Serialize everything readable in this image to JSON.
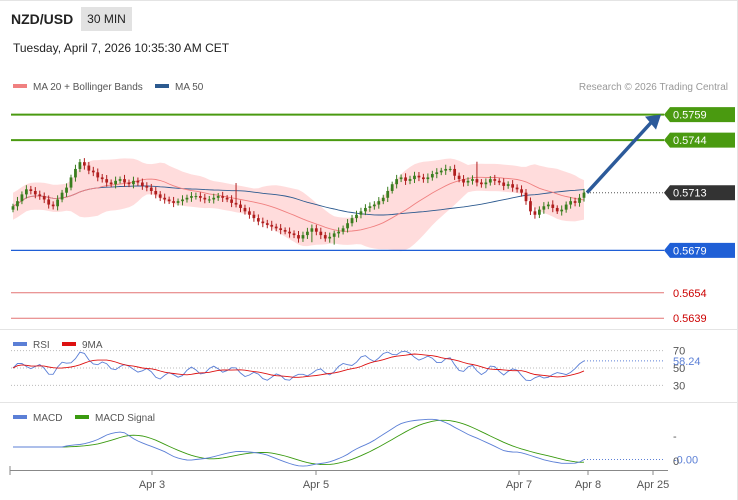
{
  "header": {
    "pair": "NZD/USD",
    "timeframe": "30 MIN",
    "datetime": "Tuesday, April 7, 2026 10:35:30 AM CET",
    "copyright": "Research © 2026 Trading Central"
  },
  "colors": {
    "bollinger_band": "#ffd6d6",
    "ma20": "#f08080",
    "ma50": "#2c5a8f",
    "resistance": "#4a9a10",
    "support": "#1f5fd6",
    "support_red": "#cc0000",
    "candle_up": "#3a7d1e",
    "candle_down": "#b01e1e",
    "arrow": "#2c5a9a",
    "rsi": "#5b7fd6",
    "rsi_ma": "#dd1111",
    "macd": "#5b7fd6",
    "macd_signal": "#3a9a10"
  },
  "chart_data": [
    {
      "type": "candlestick",
      "legend": [
        {
          "name": "MA 20 + Bollinger Bands",
          "color": "#f08080"
        },
        {
          "name": "MA 50",
          "color": "#2c5a8f"
        }
      ],
      "x_ticks": [
        "Apr 3",
        "Apr 5",
        "Apr 7",
        "Apr 8",
        "Apr 25"
      ],
      "ylim": [
        0.5635,
        0.577
      ],
      "levels": [
        {
          "value": 0.5759,
          "label": "0.5759",
          "kind": "resistance"
        },
        {
          "value": 0.5744,
          "label": "0.5744",
          "kind": "resistance"
        },
        {
          "value": 0.5713,
          "label": "0.5713",
          "kind": "current"
        },
        {
          "value": 0.5679,
          "label": "0.5679",
          "kind": "support"
        },
        {
          "value": 0.5654,
          "label": "0.5654",
          "kind": "support_red"
        },
        {
          "value": 0.5639,
          "label": "0.5639",
          "kind": "support_red"
        }
      ],
      "forecast_arrow": {
        "from": 0.5713,
        "to": 0.5759
      },
      "close_series": [
        0.5705,
        0.5708,
        0.5712,
        0.5715,
        0.5714,
        0.5712,
        0.5711,
        0.5709,
        0.5706,
        0.5705,
        0.5709,
        0.5713,
        0.5716,
        0.5722,
        0.5727,
        0.5731,
        0.5729,
        0.5726,
        0.5725,
        0.5722,
        0.5721,
        0.5719,
        0.5718,
        0.572,
        0.5721,
        0.5719,
        0.5718,
        0.572,
        0.5719,
        0.5717,
        0.5716,
        0.5714,
        0.5712,
        0.571,
        0.5709,
        0.5708,
        0.5707,
        0.5708,
        0.5709,
        0.571,
        0.5711,
        0.5711,
        0.571,
        0.5709,
        0.5709,
        0.571,
        0.5711,
        0.571,
        0.5709,
        0.5707,
        0.5706,
        0.5704,
        0.5702,
        0.57,
        0.5698,
        0.5696,
        0.5695,
        0.5694,
        0.5693,
        0.5692,
        0.5691,
        0.569,
        0.5689,
        0.5688,
        0.5686,
        0.5688,
        0.569,
        0.5692,
        0.569,
        0.5688,
        0.5686,
        0.5687,
        0.5689,
        0.569,
        0.5692,
        0.5695,
        0.5698,
        0.57,
        0.5702,
        0.5704,
        0.5705,
        0.5706,
        0.5708,
        0.571,
        0.5714,
        0.5718,
        0.5721,
        0.5722,
        0.572,
        0.5721,
        0.5723,
        0.5722,
        0.5721,
        0.5722,
        0.5724,
        0.5725,
        0.5726,
        0.5727,
        0.5727,
        0.5723,
        0.5721,
        0.5719,
        0.572,
        0.5721,
        0.5719,
        0.5718,
        0.5719,
        0.5721,
        0.572,
        0.5719,
        0.5717,
        0.5718,
        0.5716,
        0.5715,
        0.5713,
        0.5708,
        0.5702,
        0.57,
        0.5703,
        0.5705,
        0.5706,
        0.5704,
        0.5702,
        0.5703,
        0.5706,
        0.5708,
        0.5707,
        0.571,
        0.5713
      ]
    },
    {
      "type": "line",
      "legend": [
        {
          "name": "RSI",
          "color": "#5b7fd6"
        },
        {
          "name": "9MA",
          "color": "#dd1111"
        }
      ],
      "y_ticks": [
        70,
        50,
        30
      ],
      "ylim": [
        20,
        80
      ],
      "last_value": 58.24,
      "last_label": "58.24"
    },
    {
      "type": "line",
      "legend": [
        {
          "name": "MACD",
          "color": "#5b7fd6"
        },
        {
          "name": "MACD Signal",
          "color": "#3a9a10"
        }
      ],
      "y_ticks": [
        "-",
        "0"
      ],
      "last_label": "-0.00"
    }
  ]
}
